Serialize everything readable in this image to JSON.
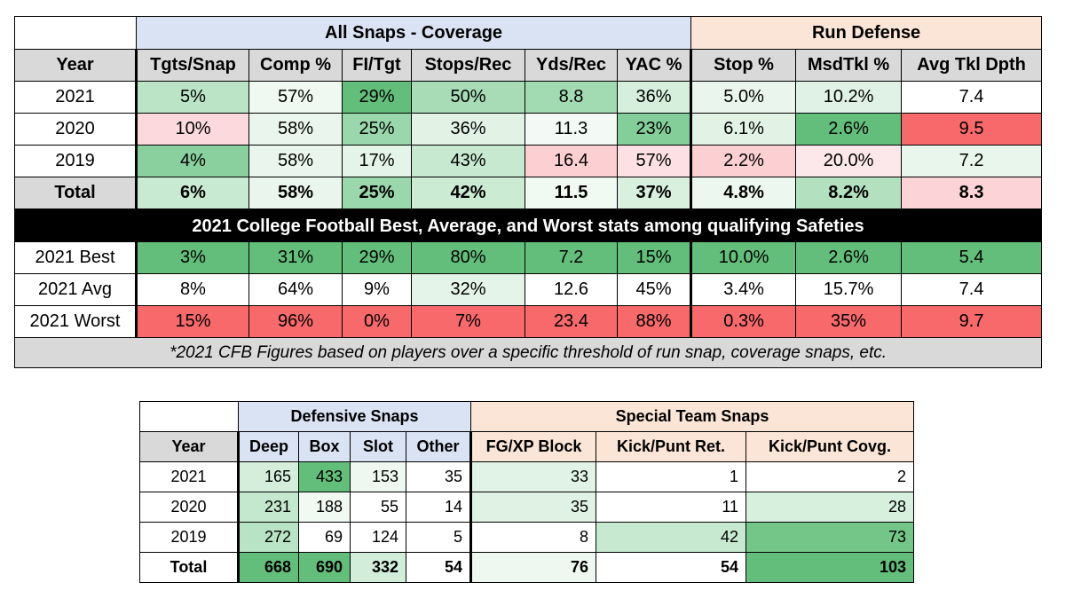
{
  "colors": {
    "coverage_header": "#dae3f3",
    "run_header": "#fbe5d6",
    "column_header": "#d9d9d9",
    "green_dark": "#63be7b",
    "green_light": "#c6e9cf",
    "red_dark": "#f8696b",
    "red_light": "#fccfd2",
    "banner": "#000000"
  },
  "table1": {
    "groups": [
      "All Snaps - Coverage",
      "Run Defense"
    ],
    "headers": [
      "Year",
      "Tgts/Snap",
      "Comp %",
      "FI/Tgt",
      "Stops/Rec",
      "Yds/Rec",
      "YAC %",
      "Stop %",
      "MsdTkl %",
      "Avg Tkl Dpth"
    ],
    "rows": [
      {
        "cells": [
          "2021",
          "5%",
          "57%",
          "29%",
          "50%",
          "8.8",
          "36%",
          "5.0%",
          "10.2%",
          "7.4"
        ],
        "bg": [
          "#ffffff",
          "#bbe4c6",
          "#eff8f1",
          "#63be7b",
          "#a7dcb6",
          "#a2dab2",
          "#d6efdc",
          "#eaf6ed",
          "#e0f2e5",
          "#ffffff"
        ]
      },
      {
        "cells": [
          "2020",
          "10%",
          "58%",
          "25%",
          "36%",
          "11.3",
          "23%",
          "6.1%",
          "2.6%",
          "9.5"
        ],
        "bg": [
          "#ffffff",
          "#fcd9dc",
          "#eaf6ed",
          "#9bd7ac",
          "#e2f3e6",
          "#f3faf5",
          "#84ce99",
          "#e2f3e6",
          "#63be7b",
          "#f8696b"
        ]
      },
      {
        "cells": [
          "2019",
          "4%",
          "58%",
          "17%",
          "43%",
          "16.4",
          "57%",
          "2.2%",
          "20.0%",
          "7.2"
        ],
        "bg": [
          "#ffffff",
          "#8ad09f",
          "#eaf6ed",
          "#e4f4e8",
          "#c7e9d0",
          "#fccfd2",
          "#fce0e3",
          "#fccfd2",
          "#fce8ea",
          "#e9f6ec"
        ]
      },
      {
        "cells": [
          "Total",
          "6%",
          "58%",
          "25%",
          "42%",
          "11.5",
          "37%",
          "4.8%",
          "8.2%",
          "8.3"
        ],
        "bg": [
          "#d9d9d9",
          "#c9ead2",
          "#eaf6ed",
          "#9bd7ac",
          "#cbebd3",
          "#f1f9f3",
          "#d9f0df",
          "#ecf7ef",
          "#b3e1bf",
          "#fcd3d6"
        ],
        "bold": true
      }
    ],
    "banner": "2021 College Football Best, Average, and Worst stats among qualifying Safeties",
    "cfb_rows": [
      {
        "cells": [
          "2021 Best",
          "3%",
          "31%",
          "29%",
          "80%",
          "7.2",
          "15%",
          "10.0%",
          "2.6%",
          "5.4"
        ],
        "bg": [
          "#ffffff",
          "#63be7b",
          "#63be7b",
          "#63be7b",
          "#63be7b",
          "#63be7b",
          "#63be7b",
          "#63be7b",
          "#63be7b",
          "#63be7b"
        ]
      },
      {
        "cells": [
          "2021 Avg",
          "8%",
          "64%",
          "9%",
          "32%",
          "12.6",
          "45%",
          "3.4%",
          "15.7%",
          "7.4"
        ],
        "bg": [
          "#ffffff",
          "#ffffff",
          "#ffffff",
          "#ffffff",
          "#e5f4e9",
          "#ffffff",
          "#ffffff",
          "#ffffff",
          "#ffffff",
          "#ffffff"
        ]
      },
      {
        "cells": [
          "2021 Worst",
          "15%",
          "96%",
          "0%",
          "7%",
          "23.4",
          "88%",
          "0.3%",
          "35%",
          "9.7"
        ],
        "bg": [
          "#ffffff",
          "#f8696b",
          "#f8696b",
          "#f8696b",
          "#f8696b",
          "#f8696b",
          "#f8696b",
          "#f8696b",
          "#f8696b",
          "#f8696b"
        ]
      }
    ],
    "footnote": "*2021 CFB Figures based on players over a specific threshold of run snap, coverage snaps, etc."
  },
  "table2": {
    "groups": [
      "Defensive Snaps",
      "Special Team Snaps"
    ],
    "headers": [
      "Year",
      "Deep",
      "Box",
      "Slot",
      "Other",
      "FG/XP Block",
      "Kick/Punt Ret.",
      "Kick/Punt Covg."
    ],
    "rows": [
      {
        "cells": [
          "2021",
          "165",
          "433",
          "153",
          "35",
          "33",
          "1",
          "2"
        ],
        "bg": [
          "#ffffff",
          "#d4eedb",
          "#63be7b",
          "#eef8f1",
          "#ffffff",
          "#e1f3e6",
          "#ffffff",
          "#ffffff"
        ]
      },
      {
        "cells": [
          "2020",
          "231",
          "188",
          "55",
          "14",
          "35",
          "11",
          "28"
        ],
        "bg": [
          "#ffffff",
          "#c4e8cd",
          "#f1f9f3",
          "#ffffff",
          "#ffffff",
          "#dff2e4",
          "#ffffff",
          "#d7efdd"
        ]
      },
      {
        "cells": [
          "2019",
          "272",
          "69",
          "124",
          "5",
          "8",
          "42",
          "73"
        ],
        "bg": [
          "#ffffff",
          "#b8e3c4",
          "#ffffff",
          "#ffffff",
          "#ffffff",
          "#ffffff",
          "#c6e9cf",
          "#73c588"
        ]
      },
      {
        "cells": [
          "Total",
          "668",
          "690",
          "332",
          "54",
          "76",
          "54",
          "103"
        ],
        "bg": [
          "#ffffff",
          "#63be7b",
          "#63be7b",
          "#d2edd9",
          "#ffffff",
          "#eef8f1",
          "#ffffff",
          "#63be7b"
        ],
        "bold": true
      }
    ]
  }
}
